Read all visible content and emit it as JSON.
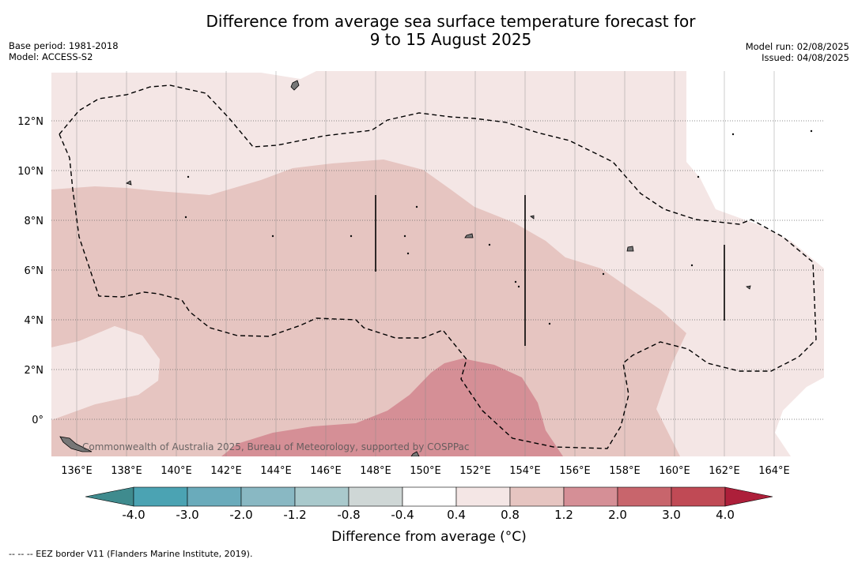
{
  "title_line1": "Difference from average sea surface temperature forecast for",
  "title_line2": "9 to 15 August 2025",
  "base_period": "Base period: 1981-2018",
  "model": "Model: ACCESS-S2",
  "model_run": "Model run: 02/08/2025",
  "issued": "Issued: 04/08/2025",
  "copyright": "Commonwealth of Australia 2025, Bureau of Meteorology, supported by COSPPac",
  "lon_labels": [
    "136°E",
    "138°E",
    "140°E",
    "142°E",
    "144°E",
    "146°E",
    "148°E",
    "150°E",
    "152°E",
    "154°E",
    "156°E",
    "158°E",
    "160°E",
    "162°E",
    "164°E"
  ],
  "lat_labels": [
    "12°N",
    "10°N",
    "8°N",
    "6°N",
    "4°N",
    "2°N",
    "0°"
  ],
  "colorbar": {
    "title": "Difference from average (°C)",
    "ticks": [
      "-4.0",
      "-3.0",
      "-2.0",
      "-1.2",
      "-0.8",
      "-0.4",
      "0.4",
      "0.8",
      "1.2",
      "2.0",
      "3.0",
      "4.0"
    ],
    "colors": [
      "#3f8b8e",
      "#4ba3b3",
      "#6aabbb",
      "#89b8c3",
      "#a9c9cc",
      "#cfd7d6",
      "#ffffff",
      "#f4e6e5",
      "#e6c5c1",
      "#d58f96",
      "#c8656c",
      "#c04a55",
      "#ad1f3a"
    ]
  },
  "footnote": "-- -- -- EEZ border V11 (Flanders Marine Institute, 2019)."
}
